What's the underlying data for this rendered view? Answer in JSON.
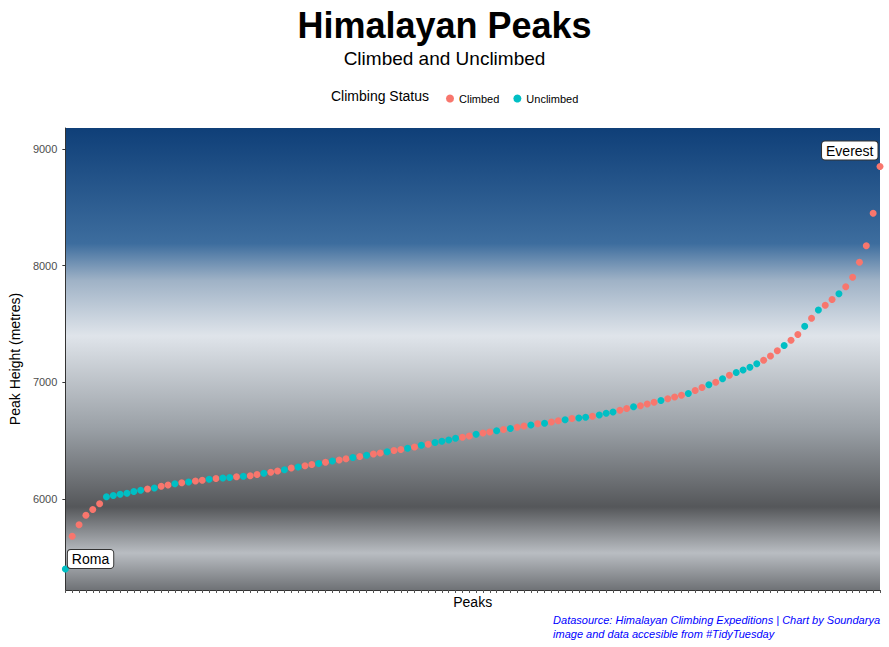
{
  "chart_data": {
    "type": "scatter",
    "title": "Himalayan Peaks",
    "subtitle": "Climbed and Unclimbed",
    "x_label": "Peaks",
    "y_label": "Peak Height (metres)",
    "legend_title": "Climbing Status",
    "legend": "top",
    "grid": false,
    "tick_labels": "y",
    "marker": "circle",
    "caption": [
      "Datasource: Himalayan Climbing Expeditions | Chart by Soundarya",
      "image and data accesible from #TidyTuesday"
    ],
    "annotations": [
      {
        "text": "Roma",
        "point": 0
      },
      {
        "text": "Everest",
        "point": 119
      }
    ],
    "ylim": [
      5220,
      9180
    ],
    "yticks": [
      6000,
      7000,
      8000,
      9000
    ],
    "categories": [
      null,
      null,
      null,
      null,
      null,
      null,
      null,
      null,
      null,
      null,
      null,
      null,
      null,
      null,
      null,
      null,
      null,
      null,
      null,
      null,
      null,
      null,
      null,
      null,
      null,
      null,
      null,
      null,
      null,
      null,
      null,
      null,
      null,
      null,
      null,
      null,
      null,
      null,
      null,
      null,
      null,
      null,
      null,
      null,
      null,
      null,
      null,
      null,
      null,
      null,
      null,
      null,
      null,
      null,
      null,
      null,
      null,
      null,
      null,
      null,
      null,
      null,
      null,
      null,
      null,
      null,
      null,
      null,
      null,
      null,
      null,
      null,
      null,
      null,
      null,
      null,
      null,
      null,
      null,
      null,
      null,
      null,
      null,
      null,
      null,
      null,
      null,
      null,
      null,
      null,
      null,
      null,
      null,
      null,
      null,
      null,
      null,
      null,
      null,
      null,
      null,
      null,
      null,
      null,
      null,
      null,
      null,
      null,
      null,
      null,
      null,
      null,
      null,
      null,
      null,
      null,
      null,
      null,
      null,
      null
    ],
    "series": [
      {
        "name": "Climbed",
        "color": "#F8766D",
        "values": [
          null,
          5680,
          5780,
          5860,
          5910,
          5960,
          null,
          null,
          null,
          null,
          null,
          null,
          6085,
          null,
          6110,
          6120,
          null,
          6140,
          null,
          6155,
          6160,
          null,
          6175,
          null,
          null,
          6190,
          null,
          6200,
          6210,
          null,
          6230,
          6240,
          null,
          6265,
          null,
          6285,
          6295,
          null,
          6315,
          null,
          6335,
          6345,
          null,
          6365,
          null,
          6385,
          6395,
          null,
          6415,
          6425,
          null,
          6445,
          null,
          6470,
          null,
          null,
          null,
          null,
          6530,
          6540,
          null,
          6565,
          6575,
          null,
          6595,
          null,
          6615,
          6625,
          null,
          6645,
          null,
          6660,
          6670,
          null,
          6690,
          null,
          null,
          6710,
          null,
          null,
          null,
          6760,
          6775,
          null,
          6800,
          6815,
          6830,
          null,
          6860,
          6875,
          6890,
          null,
          6930,
          6955,
          null,
          7000,
          null,
          7060,
          null,
          null,
          null,
          null,
          7190,
          7225,
          7270,
          null,
          7360,
          7410,
          null,
          7550,
          null,
          7660,
          7710,
          null,
          7820,
          7900,
          8030,
          8170,
          8450,
          8850
        ]
      },
      {
        "name": "Unclimbed",
        "color": "#00BFC4",
        "values": [
          5400,
          null,
          null,
          null,
          null,
          null,
          6020,
          6030,
          6040,
          6050,
          6065,
          6075,
          null,
          6095,
          null,
          null,
          6130,
          null,
          6145,
          null,
          null,
          6170,
          null,
          6180,
          6185,
          null,
          6195,
          null,
          null,
          6220,
          null,
          null,
          6250,
          null,
          6275,
          null,
          null,
          6305,
          null,
          6325,
          null,
          null,
          6355,
          null,
          6375,
          null,
          null,
          6405,
          null,
          null,
          6435,
          null,
          6460,
          null,
          6485,
          6495,
          6505,
          6520,
          null,
          null,
          6555,
          null,
          null,
          6585,
          null,
          6605,
          null,
          null,
          6635,
          null,
          6650,
          null,
          null,
          6680,
          null,
          6695,
          6700,
          null,
          6720,
          6735,
          6745,
          null,
          null,
          6790,
          null,
          null,
          null,
          6845,
          null,
          null,
          null,
          6905,
          null,
          null,
          6980,
          null,
          7030,
          null,
          7085,
          7105,
          7130,
          7160,
          null,
          null,
          null,
          7315,
          null,
          null,
          7480,
          null,
          7620,
          null,
          null,
          7760,
          null,
          null,
          null,
          null,
          null,
          null
        ]
      }
    ]
  }
}
